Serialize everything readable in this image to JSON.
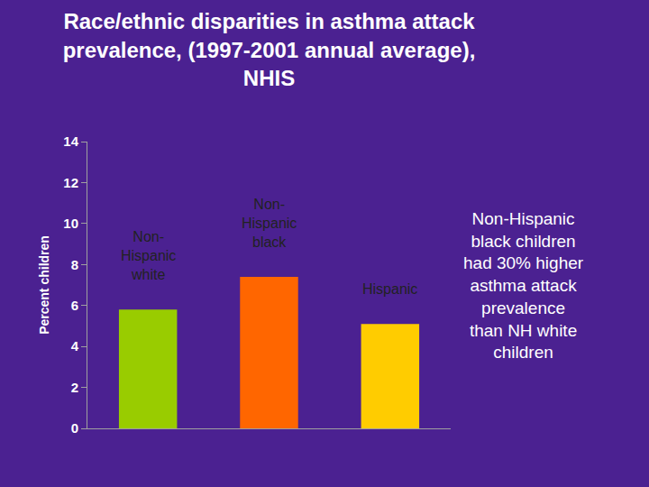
{
  "chart_data": {
    "type": "bar",
    "title": "Race/ethnic disparities in asthma attack prevalence, (1997-2001 annual average), NHIS",
    "y_label": "Percent children",
    "categories": [
      "Non-Hispanic white",
      "Non-Hispanic black",
      "Hispanic"
    ],
    "values": [
      5.8,
      7.4,
      5.1
    ],
    "colors": [
      "#99cc00",
      "#ff6600",
      "#ffcc00"
    ],
    "ylim": [
      0,
      14
    ],
    "yticks": [
      0,
      2,
      4,
      6,
      8,
      10,
      12,
      14
    ],
    "grid": false,
    "tick_labels": "y",
    "annotations": [
      "Non-Hispanic black children had 30% higher asthma attack prevalence than NH white children"
    ]
  }
}
